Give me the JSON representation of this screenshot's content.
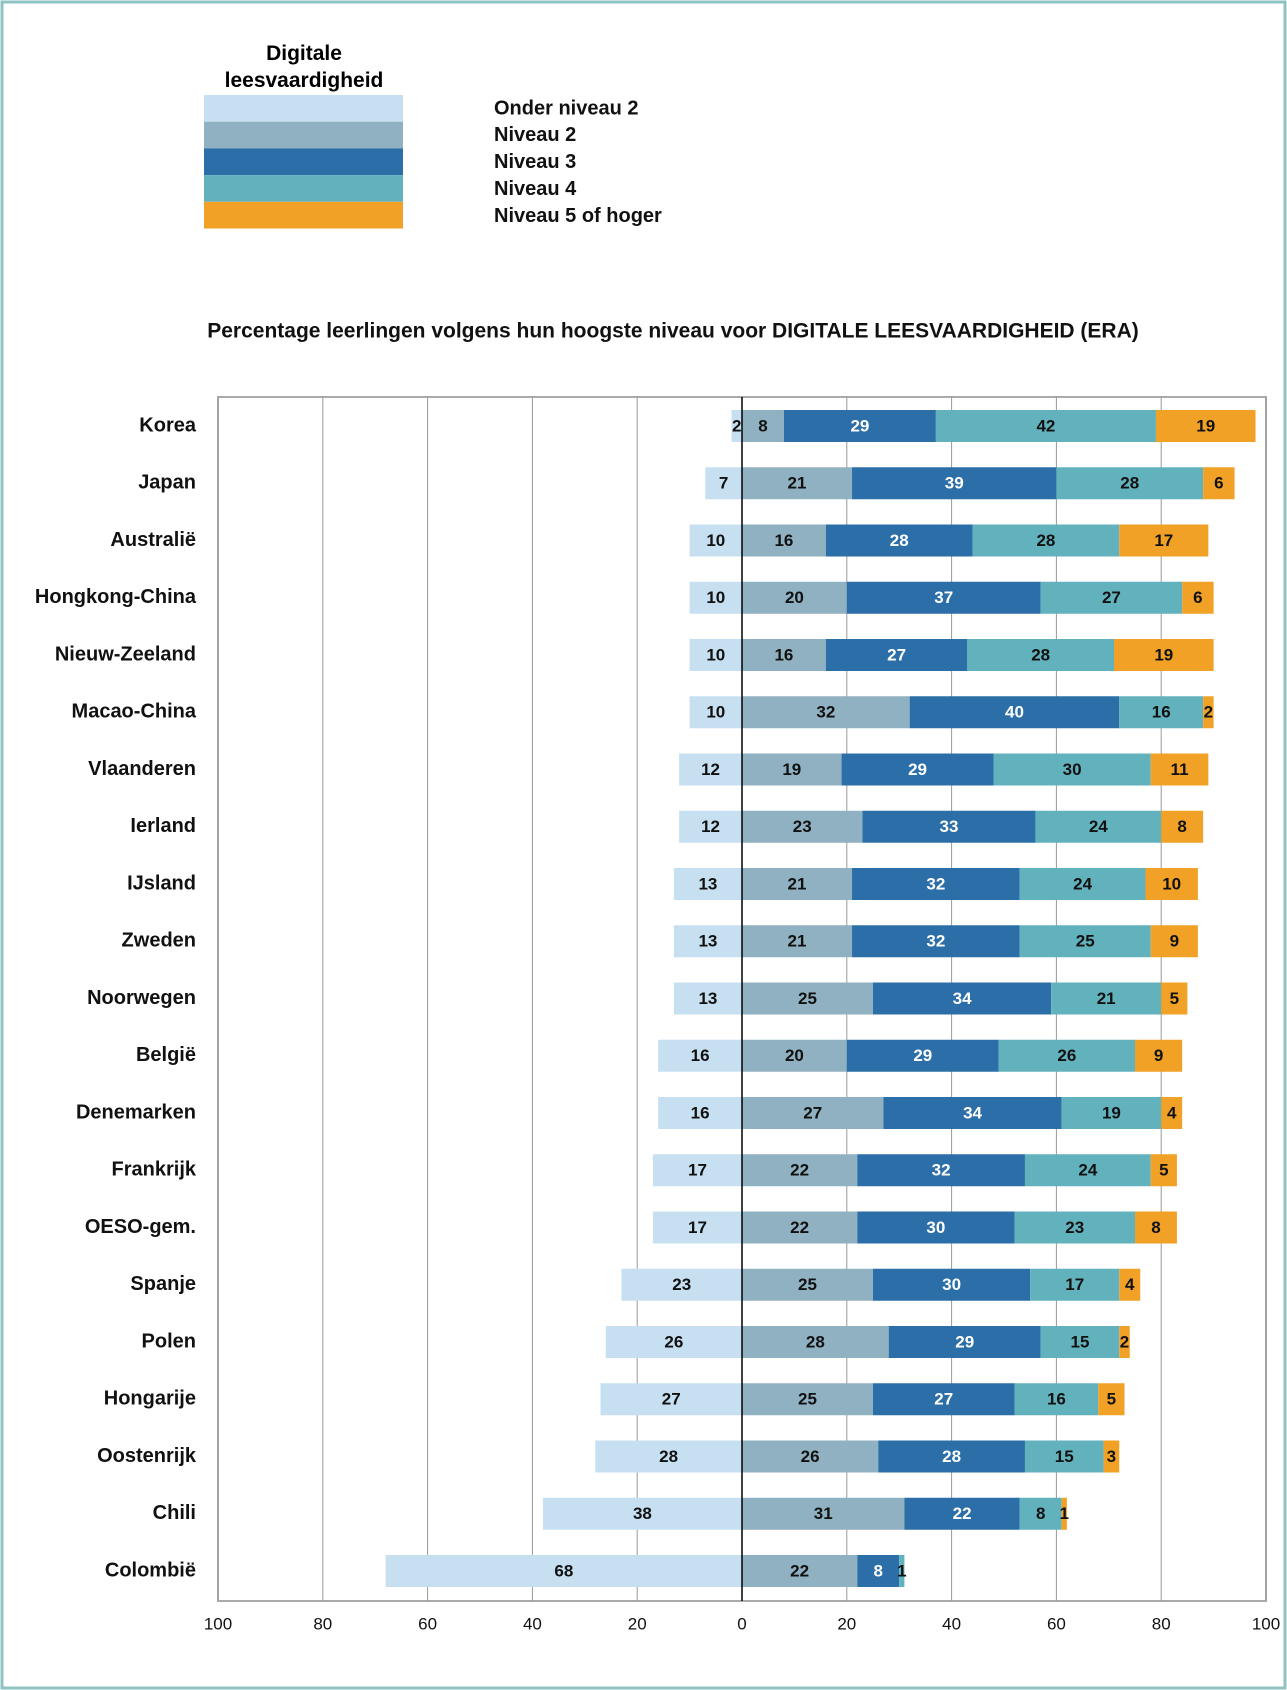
{
  "chart_data": {
    "type": "bar",
    "legend_title": "Digitale leesvaardigheid",
    "title": "Percentage leerlingen volgens hun hoogste niveau voor DIGITALE LEESVAARDIGHEID (ERA)",
    "categories": [
      "Korea",
      "Japan",
      "Australië",
      "Hongkong-China",
      "Nieuw-Zeeland",
      "Macao-China",
      "Vlaanderen",
      "Ierland",
      "IJsland",
      "Zweden",
      "Noorwegen",
      "België",
      "Denemarken",
      "Frankrijk",
      "OESO-gem.",
      "Spanje",
      "Polen",
      "Hongarije",
      "Oostenrijk",
      "Chili",
      "Colombië"
    ],
    "series": [
      {
        "name": "Onder niveau 2",
        "color": "#c6e0f2",
        "values": [
          2,
          7,
          10,
          10,
          10,
          10,
          12,
          12,
          13,
          13,
          13,
          16,
          16,
          17,
          17,
          23,
          26,
          27,
          28,
          38,
          68
        ]
      },
      {
        "name": "Niveau 2",
        "color": "#8fb1c1",
        "values": [
          8,
          21,
          16,
          20,
          16,
          32,
          19,
          23,
          21,
          21,
          25,
          20,
          27,
          22,
          22,
          25,
          28,
          25,
          26,
          31,
          22
        ]
      },
      {
        "name": "Niveau 3",
        "color": "#2b6ea8",
        "values": [
          29,
          39,
          28,
          37,
          27,
          40,
          29,
          33,
          32,
          32,
          34,
          29,
          34,
          32,
          30,
          30,
          29,
          27,
          28,
          22,
          8
        ]
      },
      {
        "name": "Niveau 4",
        "color": "#62b2bd",
        "values": [
          42,
          28,
          28,
          27,
          28,
          16,
          30,
          24,
          24,
          25,
          21,
          26,
          19,
          24,
          23,
          17,
          15,
          16,
          15,
          8,
          1
        ]
      },
      {
        "name": "Niveau 5 of hoger",
        "color": "#f0a126",
        "values": [
          19,
          6,
          17,
          6,
          19,
          2,
          11,
          8,
          10,
          9,
          5,
          9,
          4,
          5,
          8,
          4,
          2,
          5,
          3,
          1,
          null
        ]
      }
    ],
    "xlim": [
      -100,
      100
    ],
    "xticks": [
      {
        "value": -100,
        "label": "100"
      },
      {
        "value": -80,
        "label": "80"
      },
      {
        "value": -60,
        "label": "60"
      },
      {
        "value": -40,
        "label": "40"
      },
      {
        "value": -20,
        "label": "20"
      },
      0,
      20,
      40,
      60,
      80,
      100
    ],
    "grid": true
  }
}
